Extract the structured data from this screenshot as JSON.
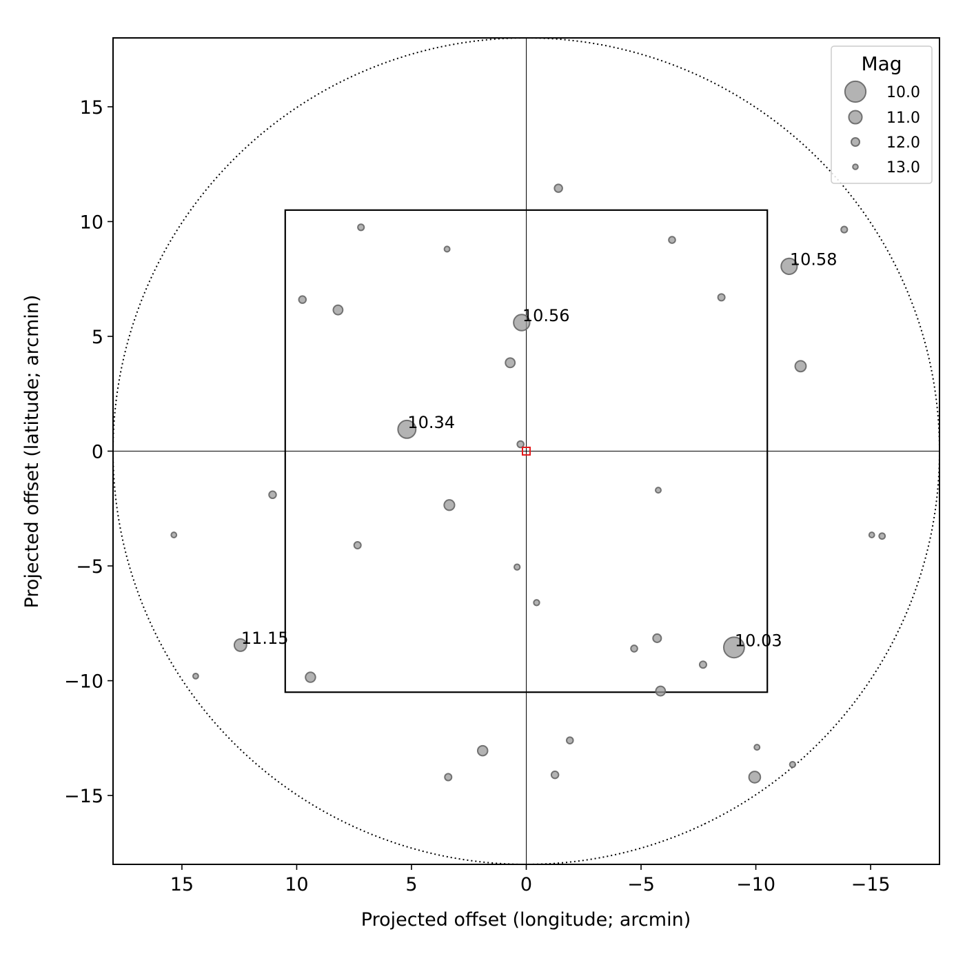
{
  "chart_data": {
    "type": "scatter",
    "xlabel": "Projected offset (longitude; arcmin)",
    "ylabel": "Projected offset (latitude; arcmin)",
    "xlim": [
      18,
      -18
    ],
    "ylim": [
      -18,
      18
    ],
    "xticks": [
      15,
      10,
      5,
      0,
      -5,
      -10,
      -15
    ],
    "yticks": [
      15,
      10,
      5,
      0,
      -5,
      -10,
      -15
    ],
    "xtick_labels": [
      "15",
      "10",
      "5",
      "0",
      "−5",
      "−10",
      "−15"
    ],
    "ytick_labels": [
      "15",
      "10",
      "5",
      "0",
      "−5",
      "−10",
      "−15"
    ],
    "grid": false,
    "field_of_view": {
      "shape": "square",
      "half_width": 10.5
    },
    "search_radius": 18,
    "target": {
      "x": 0,
      "y": 0,
      "marker": "square",
      "color": "#e41a1c"
    },
    "marker_color": "#999999",
    "stars": [
      {
        "x": -1.4,
        "y": 11.45,
        "mag": 12.1
      },
      {
        "x": 7.2,
        "y": 9.75,
        "mag": 12.6
      },
      {
        "x": 3.45,
        "y": 8.8,
        "mag": 12.9
      },
      {
        "x": -6.35,
        "y": 9.2,
        "mag": 12.5
      },
      {
        "x": -13.85,
        "y": 9.65,
        "mag": 12.6
      },
      {
        "x": -11.45,
        "y": 8.05,
        "mag": 10.58,
        "label": "10.58"
      },
      {
        "x": 9.75,
        "y": 6.6,
        "mag": 12.3
      },
      {
        "x": 8.2,
        "y": 6.15,
        "mag": 11.7
      },
      {
        "x": 0.2,
        "y": 5.6,
        "mag": 10.56,
        "label": "10.56"
      },
      {
        "x": -8.5,
        "y": 6.7,
        "mag": 12.4
      },
      {
        "x": 0.7,
        "y": 3.85,
        "mag": 11.7
      },
      {
        "x": -11.95,
        "y": 3.7,
        "mag": 11.4
      },
      {
        "x": 5.2,
        "y": 0.95,
        "mag": 10.34,
        "label": "10.34"
      },
      {
        "x": 0.25,
        "y": 0.3,
        "mag": 12.5
      },
      {
        "x": 11.05,
        "y": -1.9,
        "mag": 12.3
      },
      {
        "x": 3.35,
        "y": -2.35,
        "mag": 11.5
      },
      {
        "x": -5.75,
        "y": -1.7,
        "mag": 12.9
      },
      {
        "x": 15.35,
        "y": -3.65,
        "mag": 12.95
      },
      {
        "x": 7.35,
        "y": -4.1,
        "mag": 12.4
      },
      {
        "x": -15.05,
        "y": -3.65,
        "mag": 12.95
      },
      {
        "x": -15.5,
        "y": -3.7,
        "mag": 12.7
      },
      {
        "x": 0.4,
        "y": -5.05,
        "mag": 12.8
      },
      {
        "x": -0.45,
        "y": -6.6,
        "mag": 12.8
      },
      {
        "x": 12.45,
        "y": -8.45,
        "mag": 11.15,
        "label": "11.15"
      },
      {
        "x": -5.7,
        "y": -8.15,
        "mag": 12.0
      },
      {
        "x": -4.7,
        "y": -8.6,
        "mag": 12.5
      },
      {
        "x": -9.05,
        "y": -8.55,
        "mag": 10.03,
        "label": "10.03"
      },
      {
        "x": -7.7,
        "y": -9.3,
        "mag": 12.4
      },
      {
        "x": 9.4,
        "y": -9.85,
        "mag": 11.6
      },
      {
        "x": -5.85,
        "y": -10.45,
        "mag": 11.7
      },
      {
        "x": 14.4,
        "y": -9.8,
        "mag": 12.95
      },
      {
        "x": 1.9,
        "y": -13.05,
        "mag": 11.6
      },
      {
        "x": -1.9,
        "y": -12.6,
        "mag": 12.5
      },
      {
        "x": -10.05,
        "y": -12.9,
        "mag": 12.9
      },
      {
        "x": -11.6,
        "y": -13.65,
        "mag": 12.8
      },
      {
        "x": 3.4,
        "y": -14.2,
        "mag": 12.4
      },
      {
        "x": -1.25,
        "y": -14.1,
        "mag": 12.3
      },
      {
        "x": -9.95,
        "y": -14.2,
        "mag": 11.3
      }
    ],
    "legend": {
      "title": "Mag",
      "placement": "top-right",
      "entries": [
        {
          "label": "10.0",
          "mag": 10.0
        },
        {
          "label": "11.0",
          "mag": 11.0
        },
        {
          "label": "12.0",
          "mag": 12.0
        },
        {
          "label": "13.0",
          "mag": 13.0
        }
      ]
    }
  }
}
